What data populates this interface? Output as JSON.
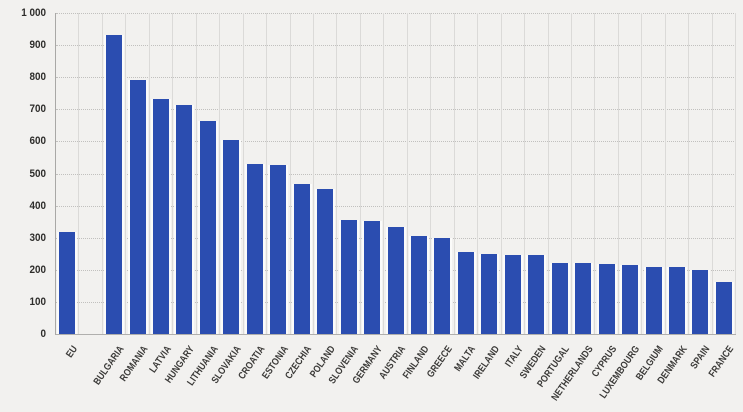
{
  "colors": {
    "bar": "#2b4db0",
    "bar_edge": "#fbfbfa",
    "background": "#f2f1ef",
    "vertical_gridline": "#dbdad8",
    "horizontal_gridline": "#c1c0be",
    "axis_line": "#a9a8a6",
    "y_label_text": "#2e2d2b",
    "x_label_text": "#3b3a38"
  },
  "chart_data": {
    "type": "bar",
    "title": "",
    "xlabel": "",
    "ylabel": "",
    "categories": [
      "EU",
      "BULGARIA",
      "ROMANIA",
      "LATVIA",
      "HUNGARY",
      "LITHUANIA",
      "SLOVAKIA",
      "CROATIA",
      "ESTONIA",
      "CZECHIA",
      "POLAND",
      "SLOVENIA",
      "GERMANY",
      "AUSTRIA",
      "FINLAND",
      "GREECE",
      "MALTA",
      "IRELAND",
      "ITALY",
      "SWEDEN",
      "PORTUGAL",
      "NETHERLANDS",
      "CYPRUS",
      "LUXEMBOURG",
      "BELGIUM",
      "DENMARK",
      "SPAIN",
      "FRANCE"
    ],
    "values": [
      317,
      930,
      791,
      731,
      715,
      663,
      604,
      531,
      525,
      468,
      452,
      354,
      351,
      332,
      306,
      299,
      257,
      250,
      247,
      247,
      222,
      221,
      217,
      214,
      210,
      209,
      200,
      163
    ],
    "ylim": [
      0,
      1000
    ],
    "ytick_step": 100,
    "ytick_labels": [
      "0",
      "100",
      "200",
      "300",
      "400",
      "500",
      "600",
      "700",
      "800",
      "900",
      "1 000"
    ],
    "gap_after_index": 0,
    "grid": "horizontal-dotted-behind-bars, vertical-solid-between-slots",
    "legend": "none",
    "x_label_rotation_deg": -55
  }
}
